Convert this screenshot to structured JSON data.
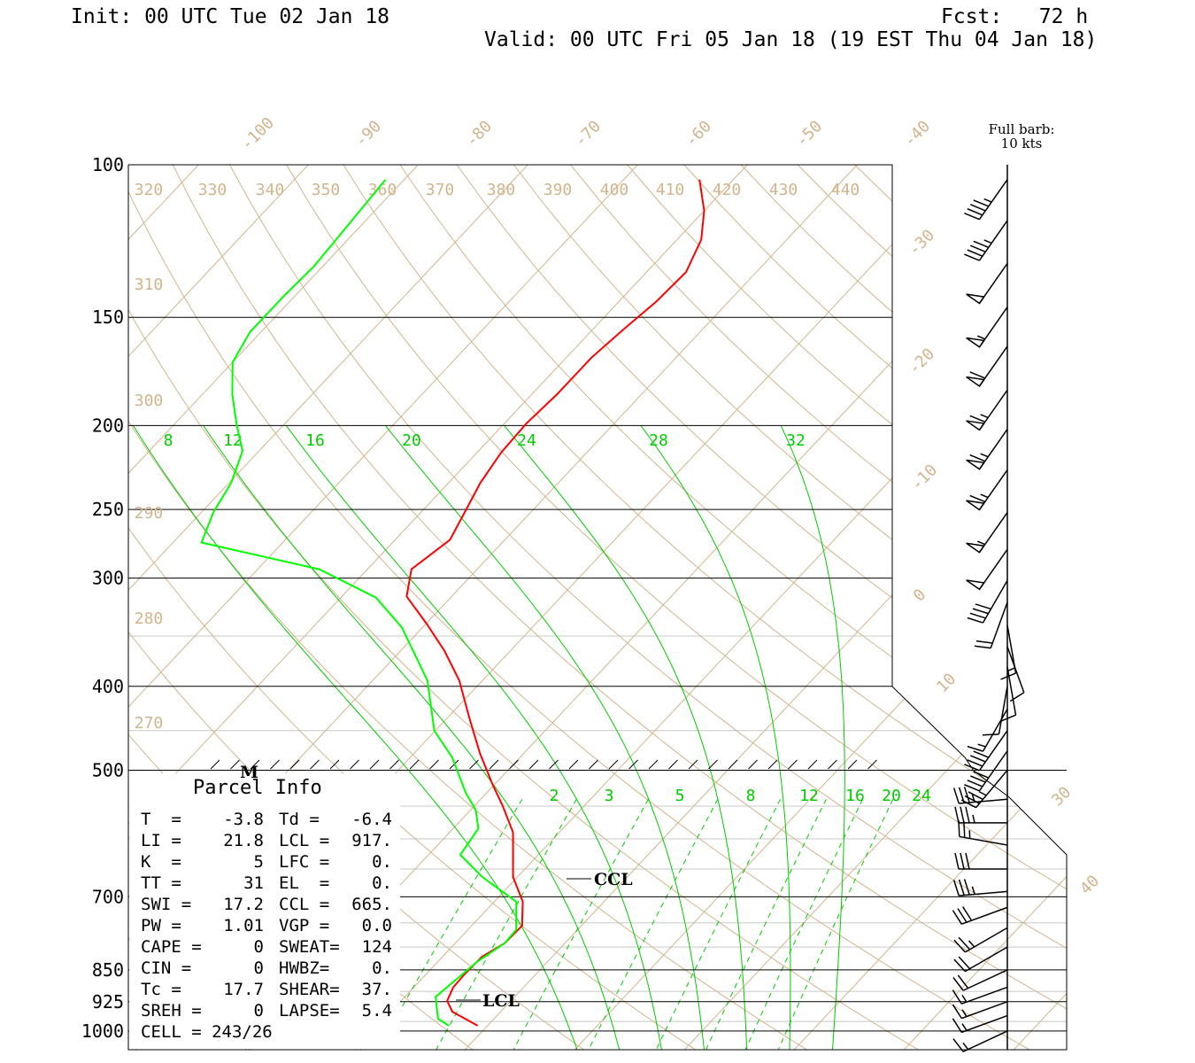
{
  "header": {
    "init": "Init: 00 UTC Tue 02 Jan 18",
    "fcst": "Fcst:   72 h",
    "valid": "Valid: 00 UTC Fri 05 Jan 18 (19 EST Thu 04 Jan 18)"
  },
  "legend": {
    "barb_line1": "Full barb:",
    "barb_line2": "10 kts"
  },
  "markers": {
    "m": "M",
    "ccl": "CCL",
    "lcl": "LCL"
  },
  "parcel_info": {
    "title": "Parcel Info",
    "rows": [
      [
        "T  =",
        "-3.8",
        "Td =",
        "-6.4"
      ],
      [
        "LI =",
        "21.8",
        "LCL =",
        "917."
      ],
      [
        "K  =",
        "5",
        "LFC =",
        "0."
      ],
      [
        "TT =",
        "31",
        "EL  =",
        "0."
      ],
      [
        "SWI =",
        "17.2",
        "CCL =",
        "665."
      ],
      [
        "PW =",
        "1.01",
        "VGP =",
        "0.0"
      ],
      [
        "CAPE =",
        "0",
        "SWEAT=",
        "124"
      ],
      [
        "CIN =",
        "0",
        "HWBZ=",
        "0."
      ],
      [
        "Tc =",
        "17.7",
        "SHEAR=",
        "37."
      ],
      [
        "SREH =",
        "0",
        "LAPSE=",
        "5.4"
      ]
    ],
    "cell": "CELL = 243/26"
  },
  "chart_data": {
    "type": "skew-t",
    "pressure_ticks": [
      100,
      150,
      200,
      250,
      300,
      400,
      500,
      700,
      850,
      925,
      1000
    ],
    "pressure_tick_labels": [
      "100",
      "150",
      "200",
      "250",
      "300",
      "400",
      "500",
      "700",
      "850",
      "925",
      "1000"
    ],
    "minor_pressure_lines": [
      350,
      450,
      550,
      600,
      650,
      750,
      800,
      900,
      975
    ],
    "isotherm_labels": [
      "-100",
      "-90",
      "-80",
      "-70",
      "-60",
      "-50",
      "-40",
      "-30",
      "-20",
      "-10",
      "0",
      "10",
      "30",
      "40"
    ],
    "isotherm_values": [
      -100,
      -90,
      -80,
      -70,
      -60,
      -50,
      -40,
      -30,
      -20,
      -10,
      0,
      10,
      30,
      40
    ],
    "dry_adiabat_labels": [
      "270",
      "280",
      "290",
      "300",
      "310",
      "320",
      "330",
      "340",
      "350",
      "360",
      "370",
      "380",
      "390",
      "400",
      "410",
      "420",
      "430",
      "440"
    ],
    "moist_adiabat_labels": [
      "8",
      "12",
      "16",
      "20",
      "24",
      "28",
      "32"
    ],
    "mixing_ratio_labels": [
      "2",
      "3",
      "5",
      "8",
      "12",
      "16",
      "20",
      "24"
    ],
    "temperature": {
      "name": "Temperature",
      "color": "#ff0000",
      "points": [
        [
          104,
          -53.1
        ],
        [
          113,
          -50
        ],
        [
          122,
          -47.8
        ],
        [
          133,
          -46.4
        ],
        [
          144,
          -46.6
        ],
        [
          155,
          -47.2
        ],
        [
          167,
          -47.7
        ],
        [
          184,
          -47.7
        ],
        [
          199,
          -48
        ],
        [
          215,
          -47.8
        ],
        [
          233,
          -47.1
        ],
        [
          252,
          -46
        ],
        [
          271,
          -45
        ],
        [
          293,
          -46
        ],
        [
          315,
          -44.1
        ],
        [
          339,
          -39.9
        ],
        [
          364,
          -36
        ],
        [
          394,
          -32.1
        ],
        [
          435,
          -28
        ],
        [
          478,
          -24
        ],
        [
          519,
          -20.2
        ],
        [
          550,
          -17.4
        ],
        [
          590,
          -14.2
        ],
        [
          664,
          -10.4
        ],
        [
          709,
          -7.4
        ],
        [
          756,
          -5.4
        ],
        [
          792,
          -5.5
        ],
        [
          821,
          -6.4
        ],
        [
          860,
          -6.5
        ],
        [
          891,
          -6.4
        ],
        [
          923,
          -5.8
        ],
        [
          950,
          -4.4
        ],
        [
          986,
          -0.9
        ]
      ]
    },
    "dewpoint": {
      "name": "Dewpoint",
      "color": "#00ff00",
      "points": [
        [
          104,
          -81.7
        ],
        [
          118,
          -81.2
        ],
        [
          131,
          -80.8
        ],
        [
          142,
          -81
        ],
        [
          156,
          -81
        ],
        [
          169,
          -80
        ],
        [
          184,
          -77.3
        ],
        [
          200,
          -74.2
        ],
        [
          214,
          -71.5
        ],
        [
          233,
          -69.8
        ],
        [
          252,
          -68.9
        ],
        [
          273,
          -67.4
        ],
        [
          293,
          -54.4
        ],
        [
          316,
          -46.8
        ],
        [
          342,
          -41.9
        ],
        [
          394,
          -35
        ],
        [
          450,
          -30.1
        ],
        [
          483,
          -26.2
        ],
        [
          531,
          -21.9
        ],
        [
          556,
          -19.5
        ],
        [
          584,
          -17.7
        ],
        [
          626,
          -17.1
        ],
        [
          664,
          -13.2
        ],
        [
          709,
          -8
        ],
        [
          764,
          -5.6
        ],
        [
          792,
          -5.5
        ],
        [
          831,
          -6.4
        ],
        [
          881,
          -6.9
        ],
        [
          913,
          -7.2
        ],
        [
          968,
          -5.1
        ],
        [
          986,
          -3.5
        ]
      ]
    },
    "winds_kts": [
      [
        104,
        215,
        45
      ],
      [
        116,
        215,
        45
      ],
      [
        130,
        215,
        50
      ],
      [
        146,
        215,
        55
      ],
      [
        162,
        215,
        60
      ],
      [
        182,
        215,
        65
      ],
      [
        202,
        215,
        65
      ],
      [
        225,
        215,
        65
      ],
      [
        252,
        215,
        55
      ],
      [
        278,
        215,
        50
      ],
      [
        302,
        210,
        40
      ],
      [
        320,
        200,
        20
      ],
      [
        340,
        170,
        15
      ],
      [
        360,
        160,
        10
      ],
      [
        380,
        170,
        10
      ],
      [
        400,
        190,
        10
      ],
      [
        425,
        210,
        15
      ],
      [
        450,
        215,
        40
      ],
      [
        475,
        215,
        40
      ],
      [
        500,
        220,
        35
      ],
      [
        540,
        265,
        35
      ],
      [
        575,
        270,
        35
      ],
      [
        610,
        280,
        25
      ],
      [
        650,
        270,
        30
      ],
      [
        690,
        265,
        35
      ],
      [
        720,
        250,
        30
      ],
      [
        760,
        240,
        25
      ],
      [
        800,
        240,
        20
      ],
      [
        850,
        245,
        20
      ],
      [
        890,
        250,
        15
      ],
      [
        925,
        250,
        15
      ],
      [
        960,
        250,
        15
      ],
      [
        1000,
        245,
        15
      ]
    ]
  }
}
